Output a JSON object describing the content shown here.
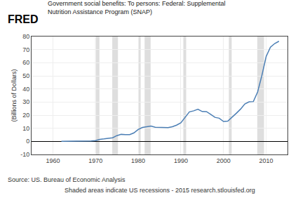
{
  "chart_data": {
    "type": "line",
    "title": "Government social benefits: To persons: Federal: Supplemental",
    "subtitle": "Nutrition Assistance Program (SNAP)",
    "y_label": "(Billions of Dollars)",
    "annotations": [
      "FRED",
      "Source: US. Bureau of Economic Analysis",
      "Shaded areas indicate US recessions - 2015 research.stlouisfed.org"
    ],
    "x": [
      1962,
      1963,
      1964,
      1965,
      1966,
      1967,
      1968,
      1969,
      1970,
      1971,
      1972,
      1973,
      1974,
      1975,
      1976,
      1977,
      1978,
      1979,
      1980,
      1981,
      1982,
      1983,
      1984,
      1985,
      1986,
      1987,
      1988,
      1989,
      1990,
      1991,
      1992,
      1993,
      1994,
      1995,
      1996,
      1997,
      1998,
      1999,
      2000,
      2001,
      2002,
      2003,
      2004,
      2005,
      2006,
      2007,
      2008,
      2009,
      2010,
      2011,
      2012,
      2013
    ],
    "values": [
      0.02,
      0.02,
      0.03,
      0.04,
      0.08,
      0.15,
      0.23,
      0.25,
      0.55,
      1.52,
      1.86,
      2.14,
      2.76,
      4.38,
      5.33,
      5.07,
      5.14,
      6.48,
      9.1,
      10.63,
      11.0,
      11.74,
      10.72,
      10.74,
      10.77,
      10.51,
      11.16,
      12.39,
      14.19,
      18.5,
      22.5,
      23.28,
      24.49,
      22.76,
      22.73,
      20.62,
      18.32,
      17.68,
      15.14,
      15.47,
      18.26,
      21.4,
      24.62,
      28.57,
      30.19,
      30.37,
      37.67,
      50.36,
      64.7,
      71.81,
      74.62,
      76.37
    ],
    "color": "#4C7FB5",
    "recession_bands": [
      [
        1969.917,
        1970.917
      ],
      [
        1973.917,
        1975.25
      ],
      [
        1980.0,
        1980.583
      ],
      [
        1981.5,
        1982.917
      ],
      [
        1990.583,
        1991.25
      ],
      [
        2001.25,
        2001.917
      ],
      [
        2007.917,
        2009.5
      ]
    ],
    "xlim": [
      1955,
      2015
    ],
    "xticks": [
      1960,
      1970,
      1980,
      1990,
      2000,
      2010
    ],
    "ylim": [
      -10,
      80
    ],
    "yticks": [
      -10,
      0,
      10,
      20,
      30,
      40,
      50,
      60,
      70,
      80
    ],
    "grid": true
  }
}
